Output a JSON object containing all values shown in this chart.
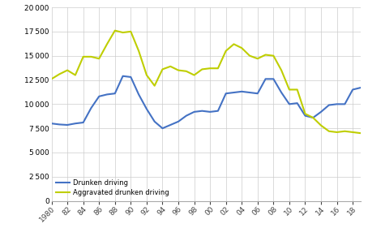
{
  "years": [
    1980,
    1981,
    1982,
    1983,
    1984,
    1985,
    1986,
    1987,
    1988,
    1989,
    1990,
    1991,
    1992,
    1993,
    1994,
    1995,
    1996,
    1997,
    1998,
    1999,
    2000,
    2001,
    2002,
    2003,
    2004,
    2005,
    2006,
    2007,
    2008,
    2009,
    2010,
    2011,
    2012,
    2013,
    2014,
    2015,
    2016,
    2017,
    2018,
    2019
  ],
  "drunken_driving": [
    8000,
    7900,
    7850,
    8000,
    8100,
    9600,
    10800,
    11000,
    11100,
    12900,
    12800,
    11000,
    9500,
    8200,
    7500,
    7850,
    8200,
    8800,
    9200,
    9300,
    9200,
    9300,
    11100,
    11200,
    11300,
    11200,
    11100,
    12600,
    12600,
    11200,
    10000,
    10100,
    8800,
    8600,
    9200,
    9900,
    10000,
    10000,
    11500,
    11700
  ],
  "aggravated_drunken_driving": [
    12600,
    13100,
    13500,
    13000,
    14900,
    14900,
    14700,
    16200,
    17600,
    17400,
    17500,
    15500,
    13000,
    11900,
    13600,
    13900,
    13500,
    13400,
    13000,
    13600,
    13700,
    13700,
    15500,
    16200,
    15800,
    15000,
    14700,
    15100,
    15000,
    13500,
    11500,
    11500,
    9000,
    8600,
    7800,
    7200,
    7100,
    7200,
    7100,
    7000
  ],
  "drunken_color": "#4472c4",
  "aggravated_color": "#bfce00",
  "background_color": "#ffffff",
  "grid_color": "#cccccc",
  "ylim": [
    0,
    20000
  ],
  "yticks": [
    0,
    2500,
    5000,
    7500,
    10000,
    12500,
    15000,
    17500,
    20000
  ],
  "xlabel": "",
  "ylabel": "",
  "legend_drunken": "Drunken driving",
  "legend_aggravated": "Aggravated drunken driving",
  "linewidth": 1.5
}
